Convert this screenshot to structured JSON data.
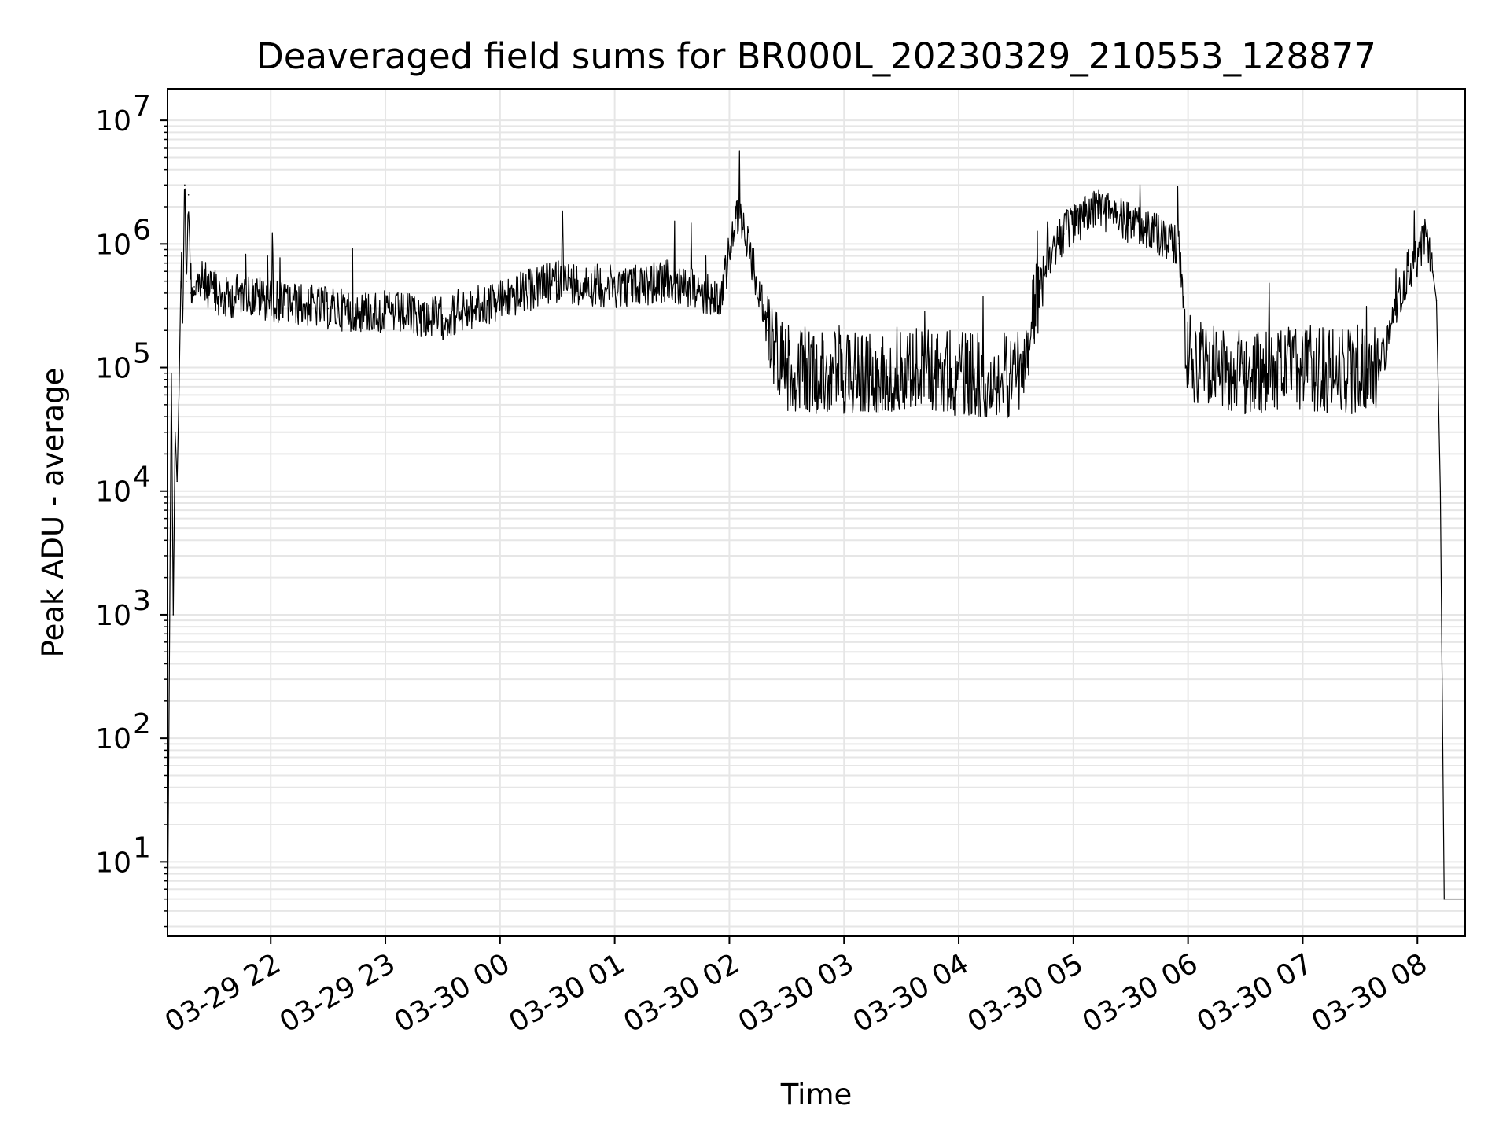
{
  "chart_data": {
    "type": "line",
    "title": "Deaveraged field sums for BR000L_20230329_210553_128877",
    "xlabel": "Time",
    "ylabel": "Peak ADU - average",
    "yscale": "log",
    "grid": true,
    "legend": "none",
    "line_color": "#000000",
    "grid_color": "#e6e6e6",
    "xlim": [
      "2023-03-29 21:06",
      "2023-03-30 08:25"
    ],
    "ylim": [
      2.5,
      18000000
    ],
    "x_ticks": [
      {
        "value": "2023-03-29 22:00",
        "label": "03-29 22"
      },
      {
        "value": "2023-03-29 23:00",
        "label": "03-29 23"
      },
      {
        "value": "2023-03-30 00:00",
        "label": "03-30 00"
      },
      {
        "value": "2023-03-30 01:00",
        "label": "03-30 01"
      },
      {
        "value": "2023-03-30 02:00",
        "label": "03-30 02"
      },
      {
        "value": "2023-03-30 03:00",
        "label": "03-30 03"
      },
      {
        "value": "2023-03-30 04:00",
        "label": "03-30 04"
      },
      {
        "value": "2023-03-30 05:00",
        "label": "03-30 05"
      },
      {
        "value": "2023-03-30 06:00",
        "label": "03-30 06"
      },
      {
        "value": "2023-03-30 07:00",
        "label": "03-30 07"
      },
      {
        "value": "2023-03-30 08:00",
        "label": "03-30 08"
      }
    ],
    "y_ticks": [
      {
        "value": 10,
        "base": "10",
        "exp": "1"
      },
      {
        "value": 100,
        "base": "10",
        "exp": "2"
      },
      {
        "value": 1000,
        "base": "10",
        "exp": "3"
      },
      {
        "value": 10000,
        "base": "10",
        "exp": "4"
      },
      {
        "value": 100000,
        "base": "10",
        "exp": "5"
      },
      {
        "value": 1000000,
        "base": "10",
        "exp": "6"
      },
      {
        "value": 10000000,
        "base": "10",
        "exp": "7"
      }
    ],
    "series": [
      {
        "x": [
          "2023-03-29 21:06",
          "2023-03-29 21:08",
          "2023-03-29 21:09",
          "2023-03-29 21:10",
          "2023-03-29 21:11",
          "2023-03-29 21:12",
          "2023-03-29 21:13",
          "2023-03-29 21:14",
          "2023-03-29 21:15",
          "2023-03-29 21:16",
          "2023-03-29 21:17",
          "2023-03-29 21:18",
          "2023-03-29 21:20",
          "2023-03-29 21:25",
          "2023-03-29 21:30",
          "2023-03-29 21:35",
          "2023-03-29 21:45",
          "2023-03-29 22:00",
          "2023-03-29 22:30",
          "2023-03-29 23:00",
          "2023-03-29 23:30",
          "2023-03-30 00:00",
          "2023-03-30 00:30",
          "2023-03-30 01:00",
          "2023-03-30 01:30",
          "2023-03-30 01:55",
          "2023-03-30 02:05",
          "2023-03-30 02:20",
          "2023-03-30 02:30",
          "2023-03-30 03:00",
          "2023-03-30 03:30",
          "2023-03-30 04:00",
          "2023-03-30 04:30",
          "2023-03-30 04:47",
          "2023-03-30 04:55",
          "2023-03-30 05:10",
          "2023-03-30 05:30",
          "2023-03-30 05:55",
          "2023-03-30 06:00",
          "2023-03-30 06:30",
          "2023-03-30 07:00",
          "2023-03-30 07:25",
          "2023-03-30 07:40",
          "2023-03-30 07:55",
          "2023-03-30 08:02",
          "2023-03-30 08:05",
          "2023-03-30 08:08",
          "2023-03-30 08:10",
          "2023-03-30 08:12",
          "2023-03-30 08:14",
          "2023-03-30 08:25"
        ],
        "y": [
          2.5,
          90000,
          1000,
          30000,
          12000,
          60000,
          500000,
          300000,
          3000000,
          500000,
          2500000,
          400000,
          450000,
          500000,
          400000,
          350000,
          400000,
          350000,
          300000,
          280000,
          250000,
          350000,
          500000,
          450000,
          500000,
          350000,
          2000000,
          200000,
          100000,
          90000,
          100000,
          90000,
          80000,
          800000,
          1200000,
          2000000,
          1500000,
          1000000,
          120000,
          90000,
          100000,
          90000,
          100000,
          600000,
          900000,
          1200000,
          600000,
          350000,
          10000,
          5,
          5
        ]
      }
    ]
  }
}
